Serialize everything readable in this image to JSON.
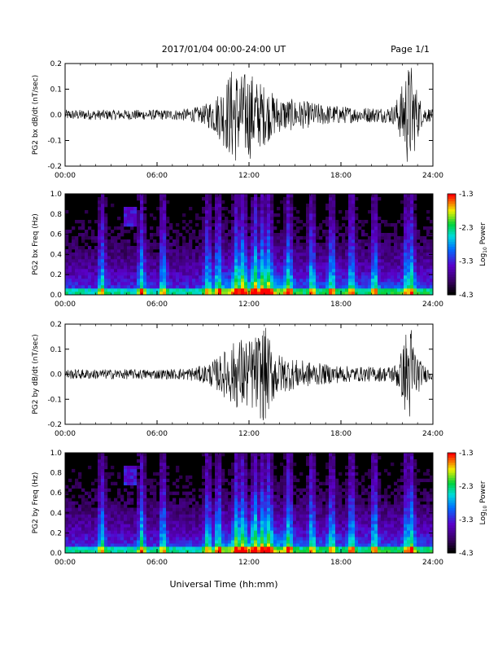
{
  "header": {
    "title": "2017/01/04  00:00-24:00 UT",
    "page": "Page 1/1"
  },
  "xlabel": "Universal Time (hh:mm)",
  "x_ticks": [
    "00:00",
    "06:00",
    "12:00",
    "18:00",
    "24:00"
  ],
  "chart_data": [
    {
      "type": "line",
      "ylabel": "PG2 bx dB/dt (nT/sec)",
      "ylim": [
        -0.2,
        0.2
      ],
      "y_ticks": [
        "0.2",
        "0.1",
        "0.0",
        "-0.1",
        "-0.2"
      ],
      "xlim_hours": [
        0,
        24
      ],
      "series": [
        {
          "x_hours": [
            0,
            1,
            2,
            3,
            4,
            5,
            6,
            7,
            8,
            9,
            9.5,
            10,
            10.5,
            11,
            11.5,
            12,
            12.5,
            13,
            13.5,
            14,
            15,
            16,
            17,
            18,
            19,
            20,
            21,
            21.5,
            22,
            22.3,
            22.6,
            22.9,
            23.3,
            24
          ],
          "amplitude": [
            0.02,
            0.02,
            0.02,
            0.02,
            0.02,
            0.02,
            0.02,
            0.02,
            0.025,
            0.035,
            0.06,
            0.09,
            0.14,
            0.2,
            0.16,
            0.18,
            0.14,
            0.12,
            0.09,
            0.07,
            0.06,
            0.05,
            0.04,
            0.035,
            0.03,
            0.03,
            0.03,
            0.04,
            0.12,
            0.2,
            0.2,
            0.12,
            0.04,
            0.02
          ]
        }
      ]
    },
    {
      "type": "heatmap",
      "ylabel": "PG2 bx Freq (Hz)",
      "ylim": [
        0,
        1.0
      ],
      "y_ticks": [
        "1.0",
        "0.8",
        "0.6",
        "0.4",
        "0.2",
        "0.0"
      ],
      "xlim_hours": [
        0,
        24
      ],
      "colorbar": {
        "label": "Log10 Power",
        "ticks": [
          "-1.3",
          "-2.3",
          "-3.3",
          "-4.3"
        ],
        "range": [
          -4.3,
          -1.3
        ]
      }
    },
    {
      "type": "line",
      "ylabel": "PG2 by dB/dt (nT/sec)",
      "ylim": [
        -0.2,
        0.2
      ],
      "y_ticks": [
        "0.2",
        "0.1",
        "0.0",
        "-0.1",
        "-0.2"
      ],
      "xlim_hours": [
        0,
        24
      ],
      "series": [
        {
          "x_hours": [
            0,
            1,
            2,
            3,
            4,
            5,
            6,
            7,
            8,
            9,
            9.5,
            10,
            10.5,
            11,
            11.5,
            12,
            12.5,
            13,
            13.5,
            14,
            15,
            16,
            17,
            18,
            19,
            20,
            21,
            21.5,
            22,
            22.3,
            22.6,
            22.9,
            23.3,
            24
          ],
          "amplitude": [
            0.02,
            0.02,
            0.02,
            0.02,
            0.02,
            0.02,
            0.02,
            0.02,
            0.025,
            0.035,
            0.05,
            0.07,
            0.1,
            0.13,
            0.15,
            0.14,
            0.16,
            0.2,
            0.12,
            0.08,
            0.06,
            0.05,
            0.04,
            0.035,
            0.03,
            0.03,
            0.03,
            0.04,
            0.1,
            0.2,
            0.2,
            0.1,
            0.04,
            0.02
          ]
        }
      ]
    },
    {
      "type": "heatmap",
      "ylabel": "PG2 by Freq (Hz)",
      "ylim": [
        0,
        1.0
      ],
      "y_ticks": [
        "1.0",
        "0.8",
        "0.6",
        "0.4",
        "0.2",
        "0.0"
      ],
      "xlim_hours": [
        0,
        24
      ],
      "colorbar": {
        "label": "Log10 Power",
        "ticks": [
          "-1.3",
          "-2.3",
          "-3.3",
          "-4.3"
        ],
        "range": [
          -4.3,
          -1.3
        ]
      }
    }
  ]
}
